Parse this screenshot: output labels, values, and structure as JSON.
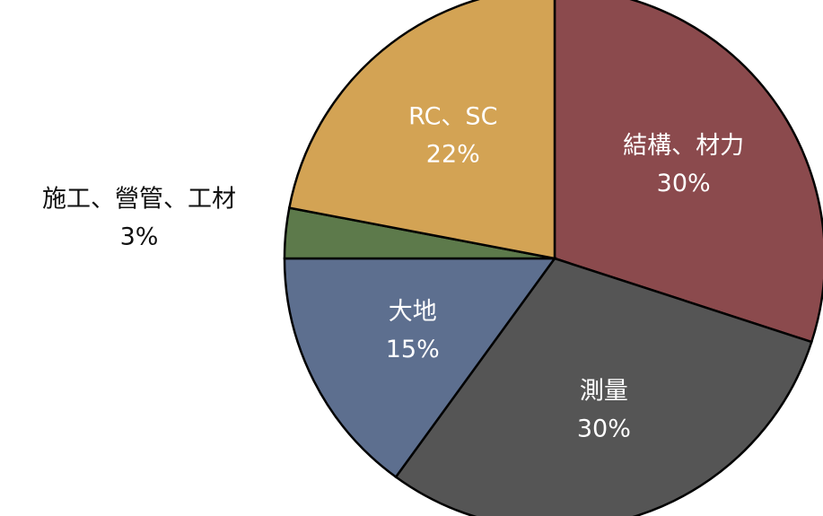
{
  "chart_data": {
    "type": "pie",
    "categories": [
      "結構、材力",
      "測量",
      "大地",
      "施工、營管、工材",
      "RC、SC"
    ],
    "values": [
      30,
      30,
      15,
      3,
      22
    ],
    "value_labels": [
      "30%",
      "30%",
      "15%",
      "3%",
      "22%"
    ],
    "colors": [
      "#8b4a4d",
      "#555555",
      "#5d6f8f",
      "#5d7a4b",
      "#d3a354"
    ]
  }
}
